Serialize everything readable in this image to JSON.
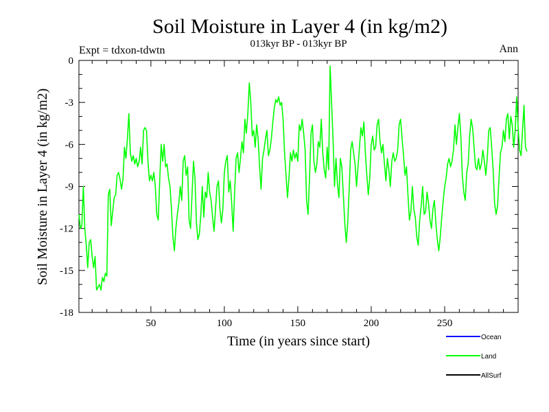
{
  "chart_data": {
    "type": "line",
    "title": "Soil Moisture in Layer 4 (in kg/m2)",
    "subtitle": "013kyr BP - 013kyr BP",
    "experiment_label": "Expt = tdxon-tdwtn",
    "season_label": "Ann",
    "xlabel": "Time (in years since start)",
    "ylabel": "Soil Moisture in Layer 4 (in kg/m2)",
    "xlim": [
      1,
      300
    ],
    "ylim": [
      -18,
      0
    ],
    "x_ticks": [
      50,
      100,
      150,
      200,
      250
    ],
    "y_ticks": [
      0,
      -3,
      -6,
      -9,
      -12,
      -15,
      -18
    ],
    "legend": [
      {
        "name": "Ocean",
        "color": "#0000ff"
      },
      {
        "name": "Land",
        "color": "#00ff00"
      },
      {
        "name": "AllSurf",
        "color": "#000000"
      }
    ],
    "series": [
      {
        "name": "Land",
        "color": "#00ff00",
        "x_start": 1,
        "x_step": 1,
        "values": [
          -11.0,
          -12.0,
          -11.8,
          -9.0,
          -12.0,
          -13.2,
          -14.8,
          -13.0,
          -12.8,
          -14.0,
          -14.8,
          -14.0,
          -16.4,
          -16.2,
          -16.0,
          -16.4,
          -15.5,
          -15.8,
          -15.2,
          -15.4,
          -9.6,
          -9.2,
          -11.8,
          -10.8,
          -9.8,
          -9.6,
          -8.2,
          -8.0,
          -8.5,
          -9.2,
          -8.5,
          -6.2,
          -7.0,
          -5.6,
          -3.8,
          -6.6,
          -7.2,
          -6.8,
          -7.4,
          -7.0,
          -7.6,
          -7.2,
          -6.2,
          -7.4,
          -5.0,
          -4.8,
          -5.0,
          -7.2,
          -8.6,
          -8.2,
          -8.6,
          -8.0,
          -9.0,
          -11.0,
          -11.4,
          -8.6,
          -6.0,
          -7.2,
          -6.0,
          -7.6,
          -7.4,
          -8.4,
          -9.0,
          -10.6,
          -12.6,
          -13.6,
          -12.0,
          -11.0,
          -10.2,
          -9.0,
          -10.0,
          -7.2,
          -6.8,
          -8.2,
          -7.6,
          -11.4,
          -12.0,
          -9.6,
          -7.2,
          -8.4,
          -11.6,
          -12.8,
          -12.4,
          -11.0,
          -9.0,
          -11.2,
          -9.4,
          -9.8,
          -8.0,
          -9.4,
          -10.0,
          -11.2,
          -12.2,
          -10.6,
          -9.0,
          -8.6,
          -10.6,
          -11.6,
          -10.6,
          -8.0,
          -7.2,
          -6.8,
          -9.4,
          -8.6,
          -10.2,
          -12.2,
          -9.4,
          -7.0,
          -6.6,
          -8.0,
          -7.0,
          -5.8,
          -6.6,
          -4.2,
          -5.2,
          -3.8,
          -1.6,
          -3.0,
          -5.4,
          -5.0,
          -6.2,
          -4.6,
          -5.6,
          -7.6,
          -9.2,
          -7.0,
          -6.4,
          -5.6,
          -5.0,
          -6.8,
          -6.4,
          -5.6,
          -4.4,
          -3.4,
          -2.8,
          -3.0,
          -2.6,
          -3.2,
          -3.0,
          -4.2,
          -6.6,
          -8.2,
          -9.8,
          -8.4,
          -6.6,
          -7.2,
          -6.4,
          -7.0,
          -6.6,
          -7.2,
          -4.6,
          -5.0,
          -4.2,
          -5.2,
          -6.4,
          -10.0,
          -11.0,
          -8.4,
          -5.2,
          -4.6,
          -7.2,
          -8.0,
          -7.4,
          -5.8,
          -6.2,
          -4.2,
          -6.6,
          -7.8,
          -8.4,
          -6.2,
          -7.8,
          -0.4,
          -3.0,
          -5.6,
          -9.0,
          -7.0,
          -8.8,
          -9.8,
          -7.0,
          -7.6,
          -9.6,
          -11.6,
          -13.0,
          -11.6,
          -9.2,
          -6.4,
          -5.8,
          -6.6,
          -7.4,
          -9.0,
          -7.6,
          -6.2,
          -4.8,
          -5.4,
          -4.4,
          -6.6,
          -8.2,
          -9.6,
          -8.4,
          -6.0,
          -5.4,
          -6.4,
          -6.2,
          -4.6,
          -4.2,
          -5.8,
          -6.6,
          -6.0,
          -7.4,
          -8.6,
          -7.0,
          -7.8,
          -9.0,
          -7.2,
          -6.6,
          -7.2,
          -7.0,
          -6.4,
          -4.6,
          -4.2,
          -5.6,
          -6.8,
          -8.2,
          -7.6,
          -9.6,
          -11.4,
          -10.8,
          -9.0,
          -10.6,
          -11.2,
          -12.6,
          -13.2,
          -11.4,
          -10.4,
          -9.0,
          -11.0,
          -10.8,
          -9.4,
          -10.2,
          -11.4,
          -12.0,
          -10.6,
          -10.0,
          -11.6,
          -12.8,
          -13.6,
          -12.6,
          -11.2,
          -10.0,
          -9.0,
          -8.4,
          -7.4,
          -7.0,
          -7.6,
          -7.2,
          -6.4,
          -4.6,
          -6.0,
          -4.8,
          -3.8,
          -5.4,
          -8.2,
          -9.4,
          -10.0,
          -8.0,
          -7.4,
          -5.4,
          -4.2,
          -4.8,
          -6.2,
          -7.6,
          -7.8,
          -7.0,
          -7.8,
          -7.4,
          -6.4,
          -7.2,
          -8.2,
          -7.0,
          -5.0,
          -4.8,
          -6.2,
          -7.8,
          -10.2,
          -11.0,
          -10.4,
          -8.4,
          -6.6,
          -6.2,
          -5.0,
          -5.8,
          -4.2,
          -3.8,
          -5.6,
          -4.0,
          -4.6,
          -6.2,
          -5.0,
          -2.6,
          -4.8,
          -6.4,
          -6.8,
          -5.0,
          -3.2,
          -6.2,
          -6.5
        ]
      }
    ]
  }
}
